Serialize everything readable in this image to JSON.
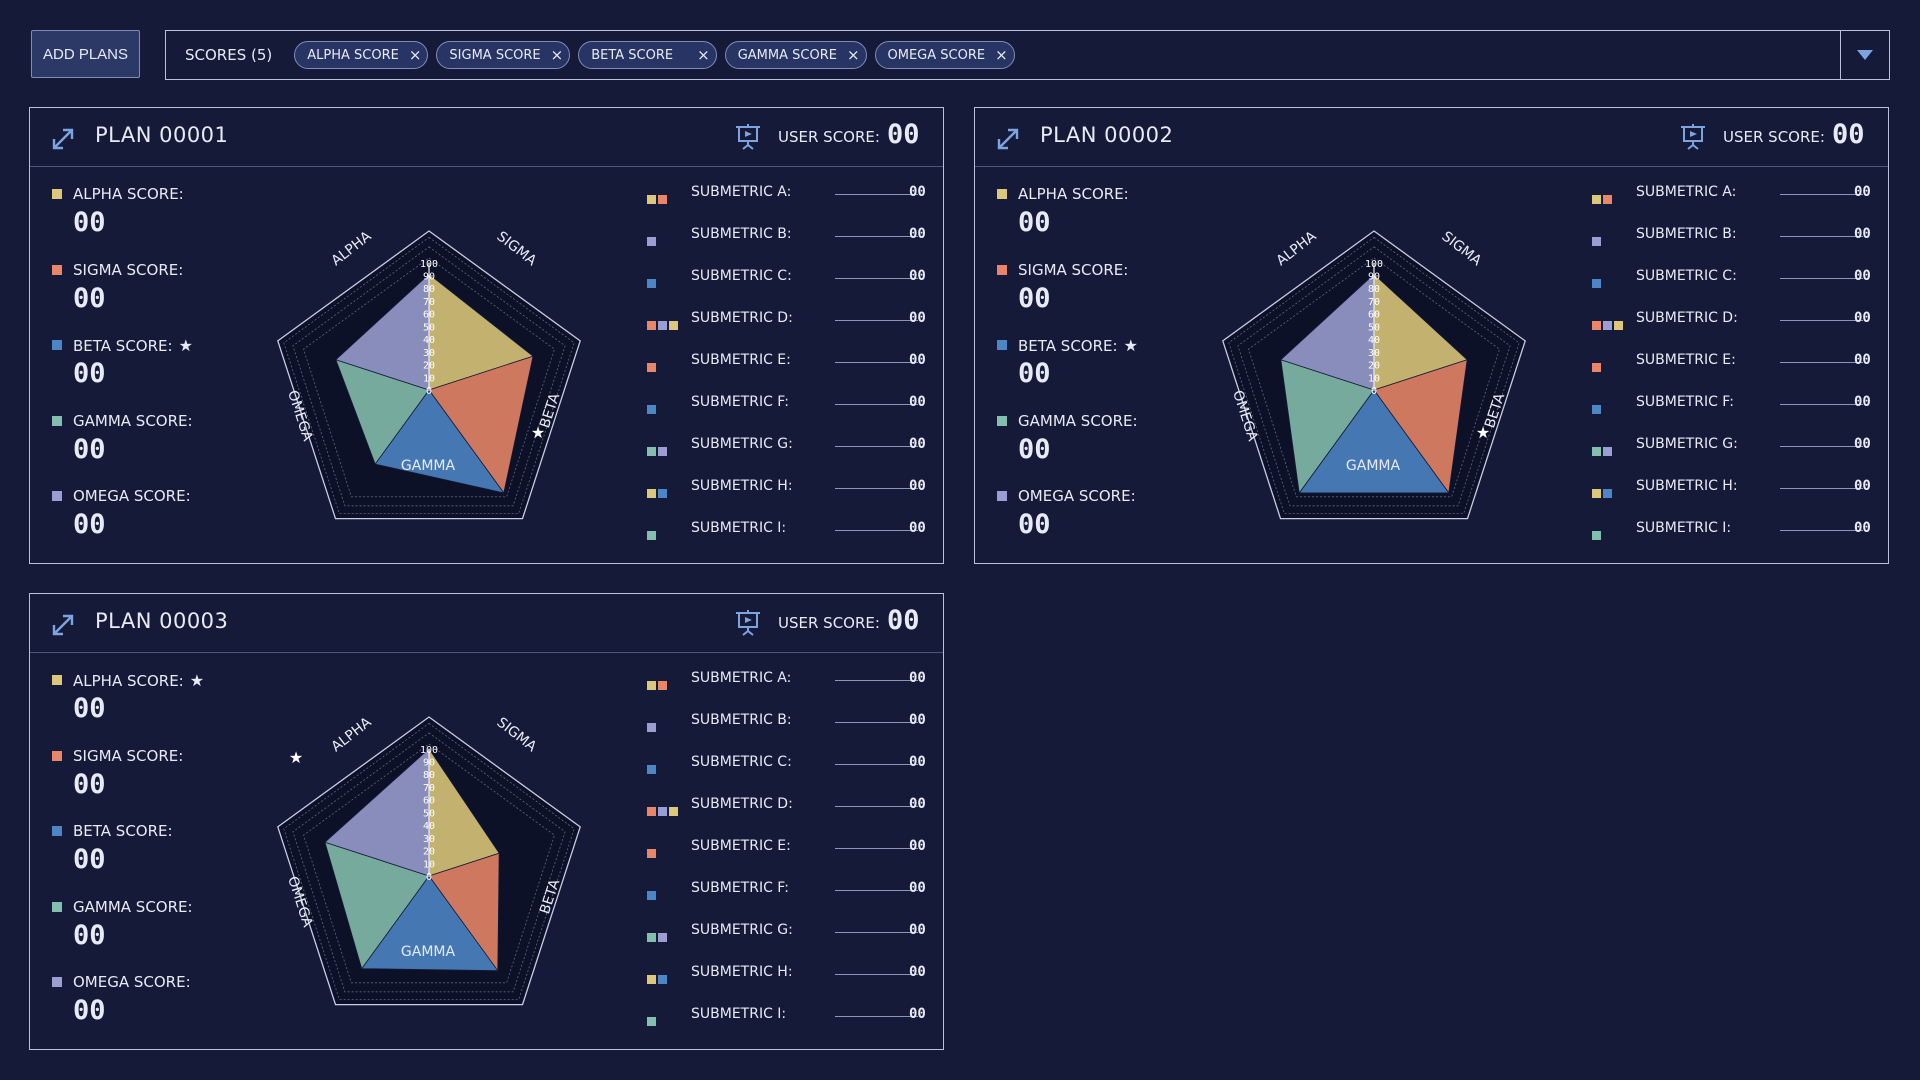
{
  "toolbar": {
    "add_label": "ADD PLANS",
    "filter_label": "SCORES (5)",
    "chips": [
      "ALPHA SCORE",
      "SIGMA SCORE",
      "BETA SCORE",
      "GAMMA SCORE",
      "OMEGA SCORE"
    ],
    "chip_close": "×"
  },
  "colors": {
    "alpha": "#dcc77a",
    "sigma": "#e98669",
    "beta": "#4d86c6",
    "gamma": "#84bfae",
    "omega": "#9b9ed2",
    "accent": "#7ea4e0"
  },
  "axes": [
    "ALPHA",
    "SIGMA",
    "BETA",
    "GAMMA",
    "OMEGA"
  ],
  "ticks": [
    "0",
    "10",
    "20",
    "30",
    "40",
    "50",
    "60",
    "70",
    "80",
    "90",
    "100"
  ],
  "star": "★",
  "plans": [
    {
      "title": "PLAN 00001",
      "user_score_label": "USER SCORE:",
      "user_score": "00",
      "starred": "beta",
      "radar_values": {
        "alpha": 91,
        "sigma": 86,
        "beta": 100,
        "gamma": 72,
        "omega": 77
      },
      "scores": [
        {
          "key": "alpha",
          "label": "ALPHA SCORE:",
          "value": "00"
        },
        {
          "key": "sigma",
          "label": "SIGMA SCORE:",
          "value": "00"
        },
        {
          "key": "beta",
          "label": "BETA SCORE:",
          "value": "00"
        },
        {
          "key": "gamma",
          "label": "GAMMA SCORE:",
          "value": "00"
        },
        {
          "key": "omega",
          "label": "OMEGA SCORE:",
          "value": "00"
        }
      ],
      "submetrics": [
        {
          "label": "SUBMETRIC A:",
          "value": "00",
          "colors": [
            "alpha",
            "sigma"
          ]
        },
        {
          "label": "SUBMETRIC B:",
          "value": "00",
          "colors": [
            "omega"
          ]
        },
        {
          "label": "SUBMETRIC C:",
          "value": "00",
          "colors": [
            "beta"
          ]
        },
        {
          "label": "SUBMETRIC D:",
          "value": "00",
          "colors": [
            "sigma",
            "omega",
            "alpha"
          ]
        },
        {
          "label": "SUBMETRIC E:",
          "value": "00",
          "colors": [
            "sigma"
          ]
        },
        {
          "label": "SUBMETRIC F:",
          "value": "00",
          "colors": [
            "beta"
          ]
        },
        {
          "label": "SUBMETRIC G:",
          "value": "00",
          "colors": [
            "gamma",
            "omega"
          ]
        },
        {
          "label": "SUBMETRIC H:",
          "value": "00",
          "colors": [
            "alpha",
            "beta"
          ]
        },
        {
          "label": "SUBMETRIC I:",
          "value": "00",
          "colors": [
            "gamma"
          ]
        }
      ]
    },
    {
      "title": "PLAN 00002",
      "user_score_label": "USER SCORE:",
      "user_score": "00",
      "starred": "beta",
      "radar_values": {
        "alpha": 91,
        "sigma": 77,
        "beta": 100,
        "gamma": 100,
        "omega": 77
      },
      "scores": [
        {
          "key": "alpha",
          "label": "ALPHA SCORE:",
          "value": "00"
        },
        {
          "key": "sigma",
          "label": "SIGMA SCORE:",
          "value": "00"
        },
        {
          "key": "beta",
          "label": "BETA SCORE:",
          "value": "00"
        },
        {
          "key": "gamma",
          "label": "GAMMA SCORE:",
          "value": "00"
        },
        {
          "key": "omega",
          "label": "OMEGA SCORE:",
          "value": "00"
        }
      ],
      "submetrics": [
        {
          "label": "SUBMETRIC A:",
          "value": "00",
          "colors": [
            "alpha",
            "sigma"
          ]
        },
        {
          "label": "SUBMETRIC B:",
          "value": "00",
          "colors": [
            "omega"
          ]
        },
        {
          "label": "SUBMETRIC C:",
          "value": "00",
          "colors": [
            "beta"
          ]
        },
        {
          "label": "SUBMETRIC D:",
          "value": "00",
          "colors": [
            "sigma",
            "omega",
            "alpha"
          ]
        },
        {
          "label": "SUBMETRIC E:",
          "value": "00",
          "colors": [
            "sigma"
          ]
        },
        {
          "label": "SUBMETRIC F:",
          "value": "00",
          "colors": [
            "beta"
          ]
        },
        {
          "label": "SUBMETRIC G:",
          "value": "00",
          "colors": [
            "gamma",
            "omega"
          ]
        },
        {
          "label": "SUBMETRIC H:",
          "value": "00",
          "colors": [
            "alpha",
            "beta"
          ]
        },
        {
          "label": "SUBMETRIC I:",
          "value": "00",
          "colors": [
            "gamma"
          ]
        }
      ]
    },
    {
      "title": "PLAN 00003",
      "user_score_label": "USER SCORE:",
      "user_score": "00",
      "starred": "alpha",
      "radar_values": {
        "alpha": 100,
        "sigma": 58,
        "beta": 92,
        "gamma": 90,
        "omega": 86
      },
      "scores": [
        {
          "key": "alpha",
          "label": "ALPHA SCORE:",
          "value": "00"
        },
        {
          "key": "sigma",
          "label": "SIGMA SCORE:",
          "value": "00"
        },
        {
          "key": "beta",
          "label": "BETA SCORE:",
          "value": "00"
        },
        {
          "key": "gamma",
          "label": "GAMMA SCORE:",
          "value": "00"
        },
        {
          "key": "omega",
          "label": "OMEGA SCORE:",
          "value": "00"
        }
      ],
      "submetrics": [
        {
          "label": "SUBMETRIC A:",
          "value": "00",
          "colors": [
            "alpha",
            "sigma"
          ]
        },
        {
          "label": "SUBMETRIC B:",
          "value": "00",
          "colors": [
            "omega"
          ]
        },
        {
          "label": "SUBMETRIC C:",
          "value": "00",
          "colors": [
            "beta"
          ]
        },
        {
          "label": "SUBMETRIC D:",
          "value": "00",
          "colors": [
            "sigma",
            "omega",
            "alpha"
          ]
        },
        {
          "label": "SUBMETRIC E:",
          "value": "00",
          "colors": [
            "sigma"
          ]
        },
        {
          "label": "SUBMETRIC F:",
          "value": "00",
          "colors": [
            "beta"
          ]
        },
        {
          "label": "SUBMETRIC G:",
          "value": "00",
          "colors": [
            "gamma",
            "omega"
          ]
        },
        {
          "label": "SUBMETRIC H:",
          "value": "00",
          "colors": [
            "alpha",
            "beta"
          ]
        },
        {
          "label": "SUBMETRIC I:",
          "value": "00",
          "colors": [
            "gamma"
          ]
        }
      ]
    }
  ]
}
